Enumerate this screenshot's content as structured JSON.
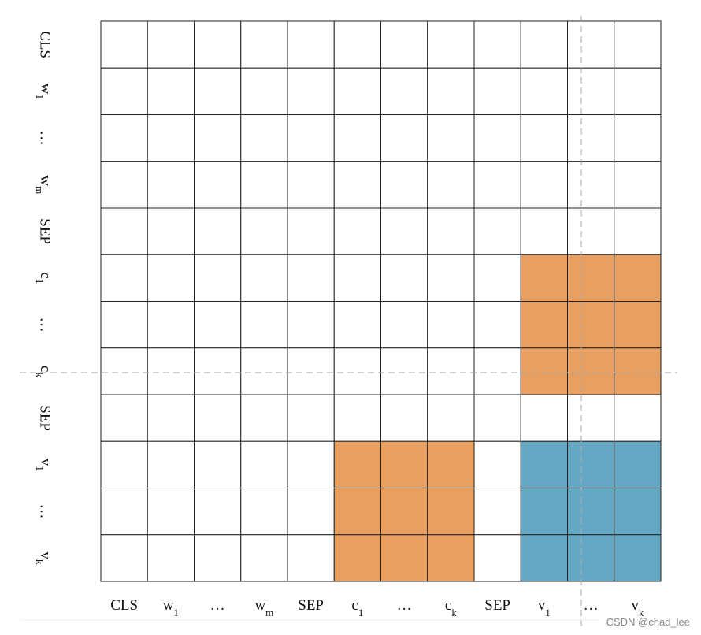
{
  "row_labels": [
    "CLS",
    {
      "base": "w",
      "sub": "1"
    },
    "…",
    {
      "base": "w",
      "sub": "m"
    },
    "SEP",
    {
      "base": "c",
      "sub": "1"
    },
    "…",
    {
      "base": "c",
      "sub": "k"
    },
    "SEP",
    {
      "base": "v",
      "sub": "1"
    },
    "…",
    {
      "base": "v",
      "sub": "k"
    }
  ],
  "column_labels": [
    "CLS",
    {
      "base": "w",
      "sub": "1"
    },
    "…",
    {
      "base": "w",
      "sub": "m"
    },
    "SEP",
    {
      "base": "c",
      "sub": "1"
    },
    "…",
    {
      "base": "c",
      "sub": "k"
    },
    "SEP",
    {
      "base": "v",
      "sub": "1"
    },
    "…",
    {
      "base": "v",
      "sub": "k"
    }
  ],
  "highlights": [
    {
      "rows": [
        5,
        7
      ],
      "cols": [
        9,
        11
      ],
      "color": "#e8a062"
    },
    {
      "rows": [
        9,
        11
      ],
      "cols": [
        5,
        7
      ],
      "color": "#e8a062"
    },
    {
      "rows": [
        9,
        11
      ],
      "cols": [
        9,
        11
      ],
      "color": "#65a8c4"
    }
  ],
  "watermark": "CSDN @chad_lee"
}
